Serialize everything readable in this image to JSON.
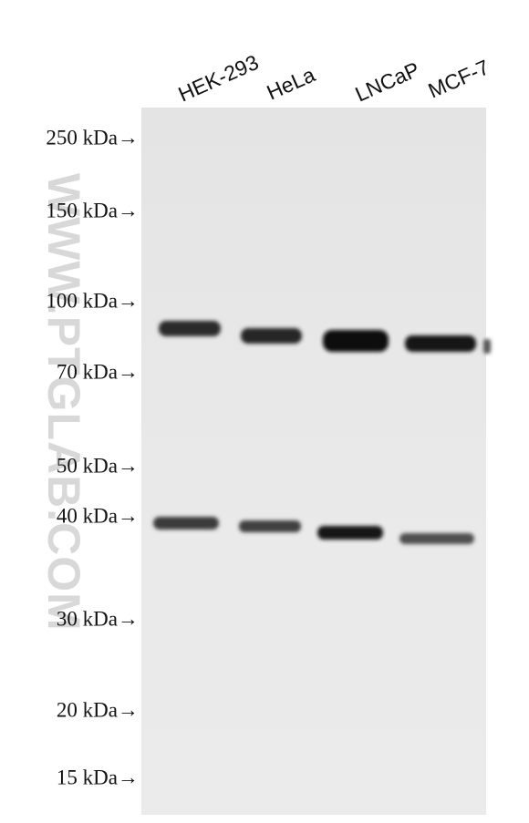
{
  "lanes": [
    "HEK-293",
    "HeLa",
    "LNCaP",
    "MCF-7"
  ],
  "markers": [
    "250 kDa→",
    "150 kDa→",
    "100 kDa→",
    "70 kDa→",
    "50 kDa→",
    "40 kDa→",
    "30 kDa→",
    "20 kDa→",
    "15 kDa→"
  ],
  "watermark": "WWW.PTGLAB.COM"
}
